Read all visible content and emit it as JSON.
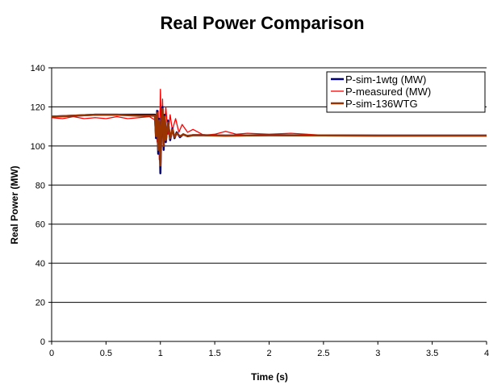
{
  "chart_data": {
    "type": "line",
    "title": "Real Power Comparison",
    "xlabel": "Time (s)",
    "ylabel": "Real Power (MW)",
    "xlim": [
      0,
      4
    ],
    "ylim": [
      0,
      140
    ],
    "xticks": [
      0,
      0.5,
      1,
      1.5,
      2,
      2.5,
      3,
      3.5,
      4
    ],
    "xtick_labels": [
      "0",
      "0.5",
      "1",
      "1.5",
      "2",
      "2.5",
      "3",
      "3.5",
      "4"
    ],
    "yticks": [
      0,
      20,
      40,
      60,
      80,
      100,
      120,
      140
    ],
    "ytick_labels": [
      "0",
      "20",
      "40",
      "60",
      "80",
      "100",
      "120",
      "140"
    ],
    "grid": "horizontal",
    "legend_position": "top-right",
    "series": [
      {
        "name": "P-sim-1wtg (MW)",
        "color": "#00007f",
        "stroke_width": 2.5,
        "x": [
          0,
          0.2,
          0.4,
          0.6,
          0.8,
          0.95,
          0.96,
          0.97,
          0.98,
          0.99,
          1.0,
          1.01,
          1.02,
          1.03,
          1.04,
          1.05,
          1.07,
          1.09,
          1.11,
          1.13,
          1.15,
          1.18,
          1.21,
          1.25,
          1.3,
          1.4,
          1.6,
          2.0,
          2.5,
          3.0,
          3.5,
          4.0
        ],
        "y": [
          115,
          115.5,
          116,
          116,
          116,
          116,
          104,
          118,
          96,
          114,
          86,
          112,
          120,
          98,
          116,
          102,
          113,
          103,
          109,
          104,
          107,
          104.5,
          106,
          105,
          105.5,
          105.5,
          105.3,
          105.5,
          105.4,
          105.3,
          105.3,
          105.3
        ]
      },
      {
        "name": "P-measured (MW)",
        "color": "#ff0000",
        "stroke_width": 1.3,
        "x": [
          0,
          0.1,
          0.2,
          0.3,
          0.4,
          0.5,
          0.6,
          0.7,
          0.8,
          0.9,
          0.96,
          0.97,
          0.98,
          0.99,
          1.0,
          1.01,
          1.02,
          1.03,
          1.05,
          1.07,
          1.09,
          1.11,
          1.14,
          1.17,
          1.2,
          1.25,
          1.3,
          1.4,
          1.5,
          1.6,
          1.7,
          1.8,
          2.0,
          2.2,
          2.5,
          3.0,
          3.5,
          4.0
        ],
        "y": [
          114.5,
          114,
          115,
          114,
          114.5,
          114,
          115,
          114,
          114.5,
          115,
          113,
          102,
          118,
          93,
          129,
          108,
          124,
          100,
          120,
          106,
          116,
          108,
          114,
          107,
          111,
          107,
          108.5,
          105.5,
          106,
          107.5,
          106,
          106.5,
          106,
          106.5,
          105.5,
          105.3,
          105.3,
          105.3
        ]
      },
      {
        "name": "P-sim-136WTG",
        "color": "#993300",
        "stroke_width": 2.5,
        "x": [
          0,
          0.2,
          0.4,
          0.6,
          0.8,
          0.95,
          0.96,
          0.97,
          0.98,
          0.99,
          1.0,
          1.01,
          1.02,
          1.03,
          1.04,
          1.05,
          1.07,
          1.09,
          1.11,
          1.13,
          1.15,
          1.18,
          1.21,
          1.25,
          1.3,
          1.4,
          1.6,
          2.0,
          2.5,
          3.0,
          3.5,
          4.0
        ],
        "y": [
          115,
          115.5,
          116,
          116,
          115.5,
          115.5,
          105,
          117,
          98,
          113,
          90,
          111,
          119,
          100,
          115,
          103,
          112,
          104,
          108.5,
          104.5,
          106.5,
          105,
          105.8,
          105.2,
          105.5,
          105.5,
          105.3,
          105.5,
          105.4,
          105.3,
          105.3,
          105.3
        ]
      }
    ]
  }
}
